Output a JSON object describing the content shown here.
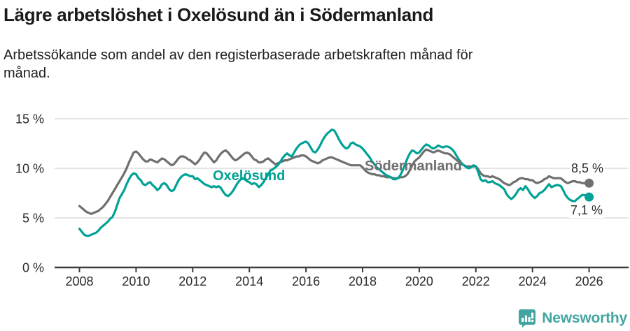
{
  "header": {
    "title": "Lägre arbetslöshet i Oxelösund än i Södermanland",
    "subtitle": "Arbetssökande som andel av den registerbaserade arbetskraften månad för månad."
  },
  "footer": {
    "brand": "Newsworthy"
  },
  "colors": {
    "oxelosund": "#00a295",
    "sodermanland": "#6f6f6f",
    "grid": "#dcdcdc",
    "axis": "#3c3c3c",
    "tick_text": "#2b2b2b"
  },
  "chart_data": {
    "type": "line",
    "title": "Lägre arbetslöshet i Oxelösund än i Södermanland",
    "subtitle": "Arbetssökande som andel av den registerbaserade arbetskraften månad för månad.",
    "x_start_year": 2008,
    "x_end_year": 2026,
    "points_per_year": 12,
    "x_ticks": [
      2008,
      2010,
      2012,
      2014,
      2016,
      2018,
      2020,
      2022,
      2024,
      2026
    ],
    "y_ticks": [
      {
        "value": 0,
        "label": "0 %"
      },
      {
        "value": 5,
        "label": "5 %"
      },
      {
        "value": 10,
        "label": "10 %"
      },
      {
        "value": 15,
        "label": "15 %"
      }
    ],
    "ylim": [
      0,
      15.5
    ],
    "grid": true,
    "legend_position": "inline-labels",
    "series": [
      {
        "name": "Södermanland",
        "color": "#6f6f6f",
        "end_label": "8,5 %",
        "end_value": 8.5,
        "values": [
          6.2,
          6.0,
          5.8,
          5.6,
          5.5,
          5.4,
          5.5,
          5.6,
          5.7,
          5.9,
          6.1,
          6.4,
          6.7,
          7.1,
          7.5,
          7.9,
          8.3,
          8.7,
          9.1,
          9.5,
          10.0,
          10.6,
          11.1,
          11.6,
          11.7,
          11.5,
          11.2,
          10.9,
          10.7,
          10.7,
          10.9,
          10.8,
          10.7,
          10.6,
          10.8,
          11.0,
          10.9,
          10.7,
          10.5,
          10.3,
          10.4,
          10.7,
          11.0,
          11.2,
          11.2,
          11.1,
          10.9,
          10.8,
          10.6,
          10.4,
          10.6,
          10.9,
          11.3,
          11.6,
          11.5,
          11.2,
          10.9,
          10.6,
          10.8,
          11.2,
          11.5,
          11.7,
          11.8,
          11.6,
          11.3,
          11.0,
          10.8,
          10.9,
          11.1,
          11.3,
          11.5,
          11.6,
          11.5,
          11.2,
          10.9,
          10.8,
          10.6,
          10.6,
          10.7,
          10.9,
          11.0,
          10.8,
          10.6,
          10.4,
          10.5,
          10.6,
          10.7,
          10.8,
          10.8,
          10.9,
          11.0,
          11.1,
          11.2,
          11.2,
          11.3,
          11.3,
          11.2,
          11.0,
          10.8,
          10.7,
          10.6,
          10.5,
          10.6,
          10.8,
          10.9,
          11.0,
          11.1,
          11.1,
          11.0,
          10.9,
          10.8,
          10.7,
          10.6,
          10.5,
          10.4,
          10.3,
          10.3,
          10.3,
          10.3,
          10.3,
          10.1,
          9.8,
          9.6,
          9.5,
          9.4,
          9.4,
          9.3,
          9.3,
          9.2,
          9.2,
          9.1,
          9.1,
          9.1,
          9.0,
          9.0,
          9.0,
          9.1,
          9.1,
          9.2,
          9.4,
          9.8,
          10.3,
          10.7,
          10.9,
          11.1,
          11.4,
          11.7,
          11.9,
          11.8,
          11.7,
          11.6,
          11.7,
          11.8,
          11.7,
          11.6,
          11.5,
          11.5,
          11.4,
          11.2,
          11.0,
          10.8,
          10.6,
          10.4,
          10.3,
          10.2,
          10.2,
          10.2,
          10.2,
          10.2,
          9.9,
          9.5,
          9.3,
          9.2,
          9.2,
          9.1,
          9.2,
          9.1,
          9.0,
          8.9,
          8.7,
          8.5,
          8.4,
          8.3,
          8.4,
          8.6,
          8.7,
          8.9,
          9.0,
          9.0,
          8.9,
          8.9,
          8.8,
          8.8,
          8.6,
          8.5,
          8.6,
          8.7,
          8.9,
          9.0,
          9.2,
          9.1,
          9.0,
          9.0,
          9.0,
          9.0,
          8.8,
          8.6,
          8.5,
          8.6,
          8.7,
          8.7,
          8.6,
          8.6,
          8.5,
          8.5,
          8.5,
          8.5
        ]
      },
      {
        "name": "Oxelösund",
        "color": "#00a295",
        "end_label": "7,1 %",
        "end_value": 7.1,
        "values": [
          3.9,
          3.6,
          3.3,
          3.2,
          3.2,
          3.3,
          3.4,
          3.5,
          3.7,
          4.0,
          4.2,
          4.4,
          4.6,
          4.9,
          5.1,
          5.6,
          6.3,
          7.0,
          7.4,
          7.8,
          8.4,
          8.9,
          9.3,
          9.5,
          9.4,
          9.0,
          8.8,
          8.4,
          8.3,
          8.5,
          8.6,
          8.3,
          8.1,
          7.8,
          8.0,
          8.4,
          8.5,
          8.3,
          7.9,
          7.7,
          7.8,
          8.3,
          8.8,
          9.1,
          9.3,
          9.4,
          9.3,
          9.2,
          9.2,
          8.9,
          9.0,
          8.8,
          8.6,
          8.4,
          8.3,
          8.2,
          8.1,
          8.2,
          8.1,
          8.2,
          8.0,
          7.6,
          7.3,
          7.2,
          7.4,
          7.7,
          8.1,
          8.5,
          8.8,
          9.0,
          8.9,
          8.7,
          8.6,
          8.4,
          8.5,
          8.4,
          8.1,
          8.3,
          8.6,
          9.0,
          9.4,
          9.8,
          9.9,
          10.1,
          10.3,
          10.6,
          11.0,
          11.3,
          11.5,
          11.3,
          11.2,
          11.6,
          12.0,
          12.3,
          12.5,
          12.6,
          12.7,
          12.5,
          12.1,
          11.7,
          11.6,
          11.9,
          12.3,
          12.8,
          13.2,
          13.5,
          13.7,
          13.9,
          13.8,
          13.4,
          12.9,
          12.5,
          12.2,
          12.0,
          12.1,
          12.5,
          12.6,
          12.4,
          12.3,
          12.2,
          12.0,
          11.7,
          11.4,
          11.1,
          10.7,
          10.4,
          10.1,
          9.9,
          9.7,
          9.5,
          9.3,
          9.2,
          9.1,
          8.9,
          8.9,
          9.0,
          9.3,
          9.8,
          10.4,
          11.0,
          11.5,
          11.8,
          11.7,
          11.5,
          11.6,
          11.9,
          12.2,
          12.4,
          12.3,
          12.1,
          12.0,
          12.1,
          12.3,
          12.2,
          12.1,
          12.2,
          12.2,
          12.1,
          11.9,
          11.6,
          11.2,
          10.8,
          10.5,
          10.3,
          10.1,
          10.0,
          10.1,
          10.3,
          10.2,
          9.6,
          8.9,
          8.7,
          8.8,
          8.6,
          8.6,
          8.7,
          8.5,
          8.4,
          8.3,
          8.1,
          7.9,
          7.4,
          7.1,
          6.9,
          7.1,
          7.4,
          7.8,
          8.0,
          7.8,
          8.2,
          7.9,
          7.5,
          7.2,
          7.0,
          7.2,
          7.5,
          7.6,
          7.8,
          8.1,
          8.4,
          8.1,
          8.2,
          8.3,
          8.3,
          8.2,
          7.8,
          7.3,
          7.0,
          6.8,
          6.7,
          6.7,
          6.9,
          7.1,
          7.3,
          7.3,
          7.2,
          7.1
        ]
      }
    ]
  }
}
